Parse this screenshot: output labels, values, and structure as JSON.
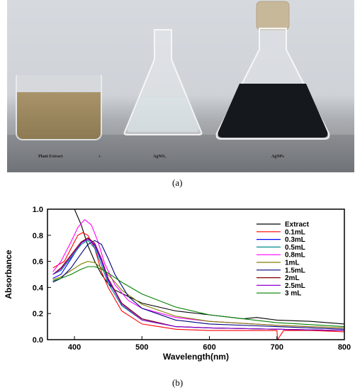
{
  "photo": {
    "labels": {
      "plant_extract": "Plant Extract",
      "plus": "+",
      "agno3": "AgNO₃",
      "agnps": "AgNPs"
    },
    "caption": "(a)"
  },
  "caption_b": "(b)",
  "chart_data": {
    "type": "line",
    "xlabel": "Wavelength(nm)",
    "ylabel": "Absorbance",
    "xlim": [
      360,
      800
    ],
    "ylim": [
      0.0,
      1.0
    ],
    "xticks": [
      400,
      500,
      600,
      700,
      800
    ],
    "yticks": [
      0.0,
      0.2,
      0.4,
      0.6,
      0.8,
      1.0
    ],
    "ytick_labels": [
      "0.0",
      "0.2",
      "0.4",
      "0.6",
      "0.8",
      "1.0"
    ],
    "grid": false,
    "legend_position": "top-right",
    "series": [
      {
        "name": "Extract",
        "color": "#000000",
        "x": [
          400,
          410,
          420,
          430,
          440,
          450,
          460,
          480,
          500,
          550,
          600,
          650,
          670,
          700,
          750,
          800
        ],
        "y": [
          1.0,
          0.88,
          0.72,
          0.6,
          0.5,
          0.43,
          0.38,
          0.33,
          0.28,
          0.22,
          0.19,
          0.16,
          0.17,
          0.15,
          0.14,
          0.12
        ]
      },
      {
        "name": "0.1mL",
        "color": "#ff0000",
        "x": [
          368,
          375,
          385,
          395,
          405,
          412,
          420,
          430,
          440,
          450,
          470,
          500,
          550,
          600,
          650,
          700,
          701,
          710,
          750,
          800
        ],
        "y": [
          0.55,
          0.57,
          0.6,
          0.7,
          0.8,
          0.82,
          0.8,
          0.7,
          0.52,
          0.4,
          0.22,
          0.12,
          0.08,
          0.07,
          0.07,
          0.07,
          0.0,
          0.07,
          0.07,
          0.06
        ]
      },
      {
        "name": "0.3mL",
        "color": "#0000ff",
        "x": [
          368,
          380,
          395,
          410,
          420,
          430,
          440,
          450,
          470,
          500,
          550,
          600,
          700,
          800
        ],
        "y": [
          0.47,
          0.5,
          0.62,
          0.74,
          0.78,
          0.72,
          0.6,
          0.45,
          0.28,
          0.16,
          0.1,
          0.09,
          0.08,
          0.07
        ]
      },
      {
        "name": "0.5mL",
        "color": "#008b8b",
        "x": [
          368,
          380,
          395,
          410,
          420,
          430,
          440,
          450,
          470,
          500,
          550,
          600,
          700,
          800
        ],
        "y": [
          0.5,
          0.53,
          0.63,
          0.73,
          0.76,
          0.7,
          0.57,
          0.43,
          0.26,
          0.15,
          0.1,
          0.09,
          0.08,
          0.07
        ]
      },
      {
        "name": "0.8mL",
        "color": "#ff00ff",
        "x": [
          368,
          380,
          395,
          405,
          415,
          425,
          435,
          445,
          460,
          480,
          500,
          550,
          600,
          700,
          800
        ],
        "y": [
          0.52,
          0.6,
          0.75,
          0.86,
          0.92,
          0.88,
          0.75,
          0.58,
          0.42,
          0.3,
          0.24,
          0.17,
          0.14,
          0.11,
          0.09
        ]
      },
      {
        "name": "1mL",
        "color": "#808000",
        "x": [
          368,
          380,
          395,
          410,
          420,
          430,
          440,
          455,
          470,
          500,
          550,
          600,
          700,
          800
        ],
        "y": [
          0.46,
          0.48,
          0.53,
          0.58,
          0.6,
          0.59,
          0.55,
          0.47,
          0.38,
          0.27,
          0.18,
          0.14,
          0.11,
          0.09
        ]
      },
      {
        "name": "1.5mL",
        "color": "#000080",
        "x": [
          368,
          380,
          395,
          410,
          420,
          430,
          440,
          450,
          460,
          480,
          500,
          550,
          600,
          700,
          800
        ],
        "y": [
          0.44,
          0.47,
          0.55,
          0.66,
          0.73,
          0.76,
          0.73,
          0.62,
          0.5,
          0.33,
          0.24,
          0.15,
          0.12,
          0.1,
          0.08
        ]
      },
      {
        "name": "2mL",
        "color": "#800000",
        "x": [
          368,
          380,
          395,
          410,
          420,
          430,
          440,
          450,
          470,
          500,
          550,
          600,
          700,
          800
        ],
        "y": [
          0.5,
          0.55,
          0.65,
          0.75,
          0.78,
          0.74,
          0.62,
          0.47,
          0.28,
          0.16,
          0.1,
          0.09,
          0.08,
          0.07
        ]
      },
      {
        "name": "2.5mL",
        "color": "#9400d3",
        "x": [
          368,
          380,
          395,
          410,
          420,
          430,
          440,
          450,
          470,
          500,
          550,
          600,
          700,
          800
        ],
        "y": [
          0.5,
          0.54,
          0.64,
          0.74,
          0.77,
          0.73,
          0.61,
          0.46,
          0.27,
          0.15,
          0.1,
          0.09,
          0.08,
          0.07
        ]
      },
      {
        "name": "3 mL",
        "color": "#008000",
        "x": [
          368,
          380,
          395,
          410,
          420,
          430,
          440,
          450,
          470,
          500,
          550,
          600,
          700,
          800
        ],
        "y": [
          0.45,
          0.47,
          0.5,
          0.54,
          0.56,
          0.56,
          0.54,
          0.51,
          0.44,
          0.35,
          0.25,
          0.19,
          0.13,
          0.1
        ]
      }
    ]
  }
}
